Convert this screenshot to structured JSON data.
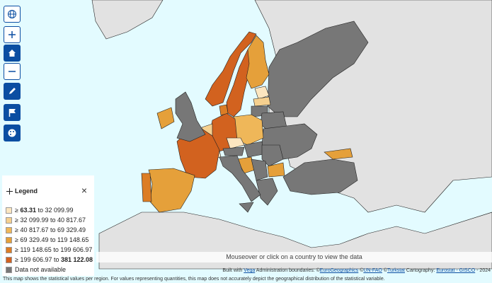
{
  "legend": {
    "title": "Legend",
    "close": "×",
    "items": [
      {
        "color": "#fce6c0",
        "parts": [
          {
            "text": "≥ "
          },
          {
            "text": "63.31",
            "bold": true
          },
          {
            "text": " to 32 099.99"
          }
        ]
      },
      {
        "color": "#f5d08f",
        "parts": [
          {
            "text": "≥ 32 099.99 to 40 817.67"
          }
        ]
      },
      {
        "color": "#efb759",
        "parts": [
          {
            "text": "≥ 40 817.67 to 69 329.49"
          }
        ]
      },
      {
        "color": "#e5a03a",
        "parts": [
          {
            "text": "≥ 69 329.49 to 119 148.65"
          }
        ]
      },
      {
        "color": "#dc7d25",
        "parts": [
          {
            "text": "≥ 119 148.65 to 199 606.97"
          }
        ]
      },
      {
        "color": "#d2621f",
        "parts": [
          {
            "text": "≥ 199 606.97 to "
          },
          {
            "text": "381 122.08",
            "bold": true
          }
        ]
      },
      {
        "color": "#777777",
        "parts": [
          {
            "text": "Data not available"
          }
        ]
      }
    ]
  },
  "hint": "Mouseover or click on a country to view the data",
  "attribution": [
    {
      "text": "Built with "
    },
    {
      "text": "Vega",
      "link": true
    },
    {
      "text": " Administration boundaries: ©"
    },
    {
      "text": "EuroGeographics",
      "link": true
    },
    {
      "text": " ©"
    },
    {
      "text": "UN-FAO",
      "link": true
    },
    {
      "text": " ©"
    },
    {
      "text": "Turkstat",
      "link": true
    },
    {
      "text": " Cartography: "
    },
    {
      "text": "Eurostat - GISCO",
      "link": true
    },
    {
      "text": " - 2024"
    }
  ],
  "note": "This map shows the statistical values per region. For values representing quantities, this map does not accurately depict the geographical distribution of the statistical variable."
}
